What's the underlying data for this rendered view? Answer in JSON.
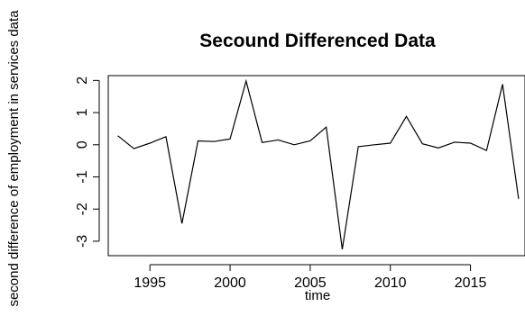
{
  "chart_data": {
    "type": "line",
    "title": "Secound Differenced Data",
    "xlabel": "time",
    "ylabel": "second difference of employment in services data",
    "x": [
      1993,
      1994,
      1995,
      1996,
      1997,
      1998,
      1999,
      2000,
      2001,
      2002,
      2003,
      2004,
      2005,
      2006,
      2007,
      2008,
      2009,
      2010,
      2011,
      2012,
      2013,
      2014,
      2015,
      2016,
      2017,
      2018
    ],
    "series": [
      {
        "values": [
          0.28,
          -0.12,
          0.05,
          0.25,
          -2.45,
          0.12,
          0.1,
          0.18,
          1.98,
          0.07,
          0.15,
          0.0,
          0.12,
          0.55,
          -3.25,
          -0.06,
          0.0,
          0.05,
          0.88,
          0.03,
          -0.1,
          0.08,
          0.05,
          -0.18,
          1.88,
          -1.68
        ]
      }
    ],
    "xlim": [
      1992.4,
      2018.4
    ],
    "ylim": [
      -3.45,
      2.15
    ],
    "xticks": [
      "1995",
      "2000",
      "2005",
      "2010",
      "2015"
    ],
    "yticks": [
      "-3",
      "-2",
      "-1",
      "0",
      "1",
      "2"
    ],
    "grid": false,
    "colors": {
      "line": "#000000",
      "axis": "#000000",
      "background": "#ffffff"
    }
  }
}
